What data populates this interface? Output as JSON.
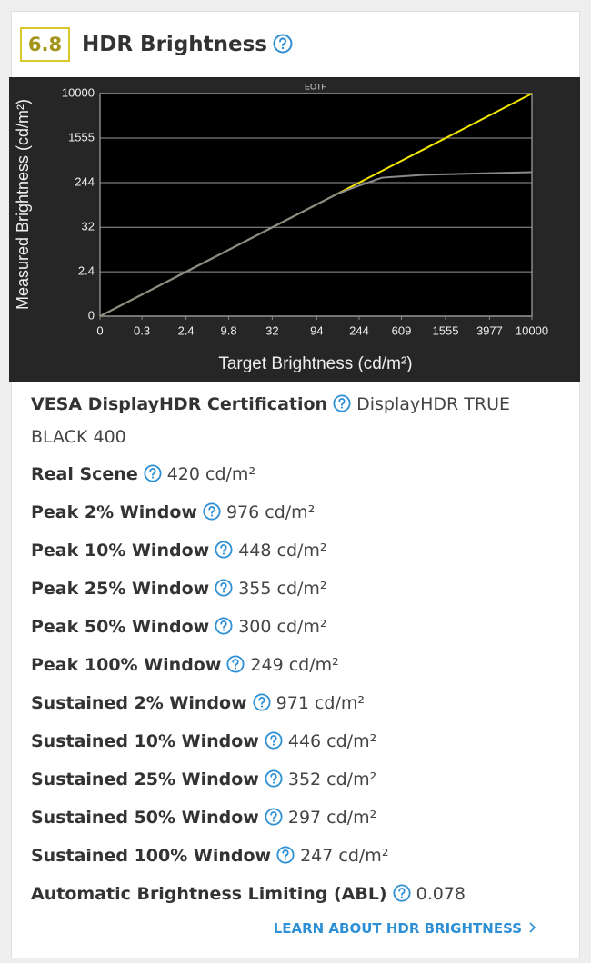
{
  "header": {
    "score": "6.8",
    "title": "HDR Brightness"
  },
  "chart_data": {
    "type": "line",
    "title": "EOTF",
    "x_label": "Target Brightness (cd/m²)",
    "y_label": "Measured Brightness (cd/m²)",
    "scale": "pq",
    "x": [
      0,
      0.3,
      2.4,
      9.8,
      32,
      94,
      150,
      244,
      400,
      1000,
      10000
    ],
    "series": [
      {
        "color": "#f2e600",
        "values": [
          0,
          0.3,
          2.4,
          9.8,
          32,
          94,
          150,
          244,
          400,
          1000,
          10000
        ]
      },
      {
        "color": "#8a8a8a",
        "values": [
          0,
          0.3,
          2.4,
          9.8,
          32,
          94,
          150,
          215,
          300,
          340,
          380
        ]
      }
    ],
    "xlim": [
      0,
      10000
    ],
    "ylim": [
      0,
      10000
    ],
    "xticks": [
      0,
      0.3,
      2.4,
      9.8,
      32,
      94,
      244,
      609,
      1555,
      3977,
      10000
    ],
    "yticks": [
      0,
      2.4,
      32,
      244,
      1555,
      10000
    ],
    "grid": true
  },
  "specs": [
    {
      "label": "VESA DisplayHDR Certification",
      "value": "DisplayHDR TRUE BLACK 400"
    },
    {
      "label": "Real Scene",
      "value": "420 cd/m²"
    },
    {
      "label": "Peak 2% Window",
      "value": "976 cd/m²"
    },
    {
      "label": "Peak 10% Window",
      "value": "448 cd/m²"
    },
    {
      "label": "Peak 25% Window",
      "value": "355 cd/m²"
    },
    {
      "label": "Peak 50% Window",
      "value": "300 cd/m²"
    },
    {
      "label": "Peak 100% Window",
      "value": "249 cd/m²"
    },
    {
      "label": "Sustained 2% Window",
      "value": "971 cd/m²"
    },
    {
      "label": "Sustained 10% Window",
      "value": "446 cd/m²"
    },
    {
      "label": "Sustained 25% Window",
      "value": "352 cd/m²"
    },
    {
      "label": "Sustained 50% Window",
      "value": "297 cd/m²"
    },
    {
      "label": "Sustained 100% Window",
      "value": "247 cd/m²"
    },
    {
      "label": "Automatic Brightness Limiting (ABL)",
      "value": "0.078"
    }
  ],
  "link": "LEARN ABOUT HDR BRIGHTNESS"
}
